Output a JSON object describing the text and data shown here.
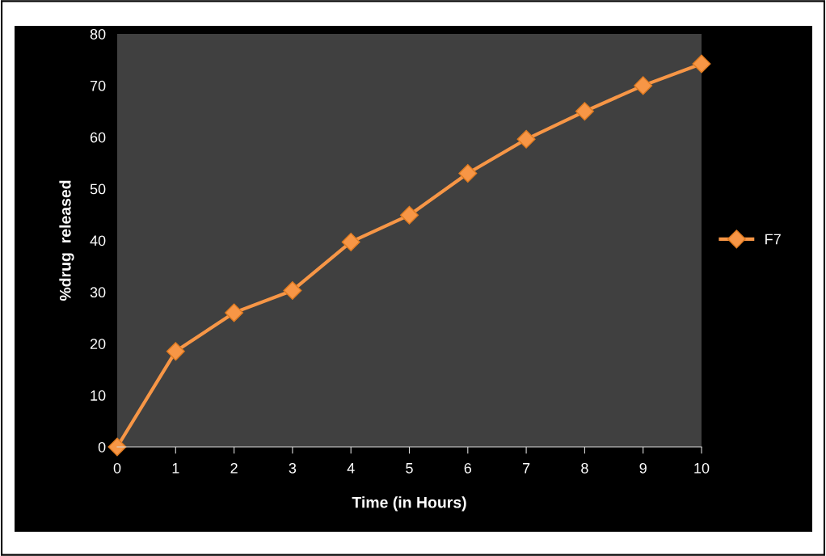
{
  "chart_data": {
    "type": "line",
    "xlabel": "Time (in Hours)",
    "ylabel": "%drug  released",
    "x": [
      0,
      1,
      2,
      3,
      4,
      5,
      6,
      7,
      8,
      9,
      10
    ],
    "series": [
      {
        "name": "F7",
        "color": "#f79646",
        "values": [
          0,
          18.5,
          26,
          30.3,
          39.7,
          44.9,
          53,
          59.6,
          65,
          70,
          74.2
        ]
      }
    ],
    "xlim": [
      0,
      10
    ],
    "xticks": [
      0,
      1,
      2,
      3,
      4,
      5,
      6,
      7,
      8,
      9,
      10
    ],
    "ylim": [
      0,
      80
    ],
    "yticks": [
      0,
      10,
      20,
      30,
      40,
      50,
      60,
      70,
      80
    ],
    "grid": false,
    "legend": "right",
    "marker": "diamond",
    "line_style": "solid"
  }
}
